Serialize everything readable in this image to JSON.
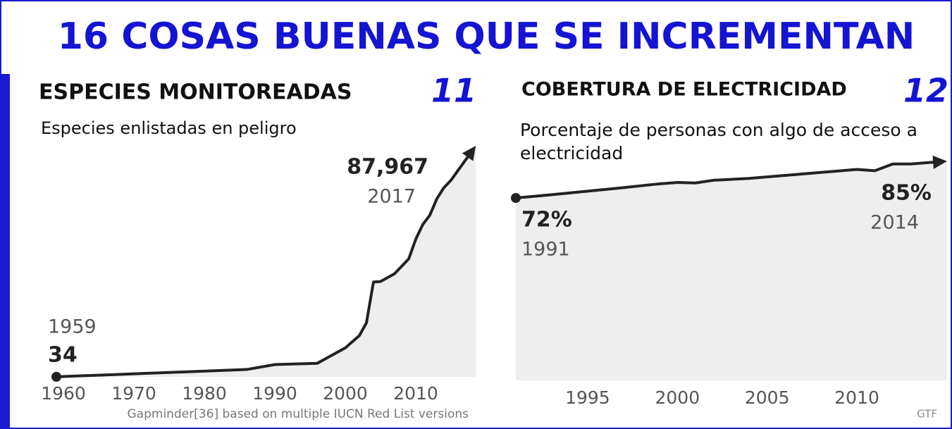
{
  "title": "16 COSAS BUENAS QUE SE INCREMENTAN",
  "chart_data": [
    {
      "type": "line",
      "title": "ESPECIES MONITOREADAS",
      "number": "11",
      "subtitle": "Especies enlistadas en peligro",
      "source": "Gapminder[36] based on multiple IUCN Red List versions",
      "x": [
        1959,
        1986,
        1990,
        1996,
        2000,
        2002,
        2003,
        2004,
        2005,
        2007,
        2009,
        2010,
        2011,
        2012,
        2013,
        2014,
        2015,
        2016,
        2017
      ],
      "values": [
        34,
        3000,
        5000,
        5500,
        11800,
        16800,
        22000,
        38600,
        38800,
        42000,
        48000,
        56000,
        62000,
        65800,
        72500,
        77000,
        80000,
        84000,
        87967
      ],
      "value_labels": [
        null,
        null,
        null,
        null,
        null,
        null,
        null,
        null,
        null,
        null,
        null,
        null,
        null,
        null,
        null,
        null,
        null,
        null,
        "87,967"
      ],
      "xlim": [
        1959,
        2017
      ],
      "ylim": [
        0,
        90000
      ],
      "xticks": [
        1960,
        1970,
        1980,
        1990,
        2000,
        2010
      ],
      "color": "#222222"
    },
    {
      "type": "line",
      "title": "COBERTURA DE ELECTRICIDAD",
      "number": "12",
      "subtitle": "Porcentaje de personas con algo de acceso a electricidad",
      "source": "GTF",
      "x": [
        1991,
        1993,
        1995,
        1997,
        1999,
        2000,
        2001,
        2002,
        2004,
        2006,
        2008,
        2010,
        2011,
        2012,
        2013,
        2014
      ],
      "values": [
        72,
        73.2,
        74.5,
        75.8,
        77.2,
        77.7,
        77.5,
        78.5,
        79.2,
        80.3,
        81.4,
        82.5,
        82,
        84.5,
        84.5,
        85
      ],
      "value_labels": [
        "72%",
        null,
        null,
        null,
        null,
        null,
        null,
        null,
        null,
        null,
        null,
        null,
        null,
        null,
        null,
        "85%"
      ],
      "xlim": [
        1991,
        2014
      ],
      "ylim": [
        5,
        86.5
      ],
      "xticks": [
        1995,
        2000,
        2005,
        2010
      ],
      "color": "#222222"
    }
  ]
}
